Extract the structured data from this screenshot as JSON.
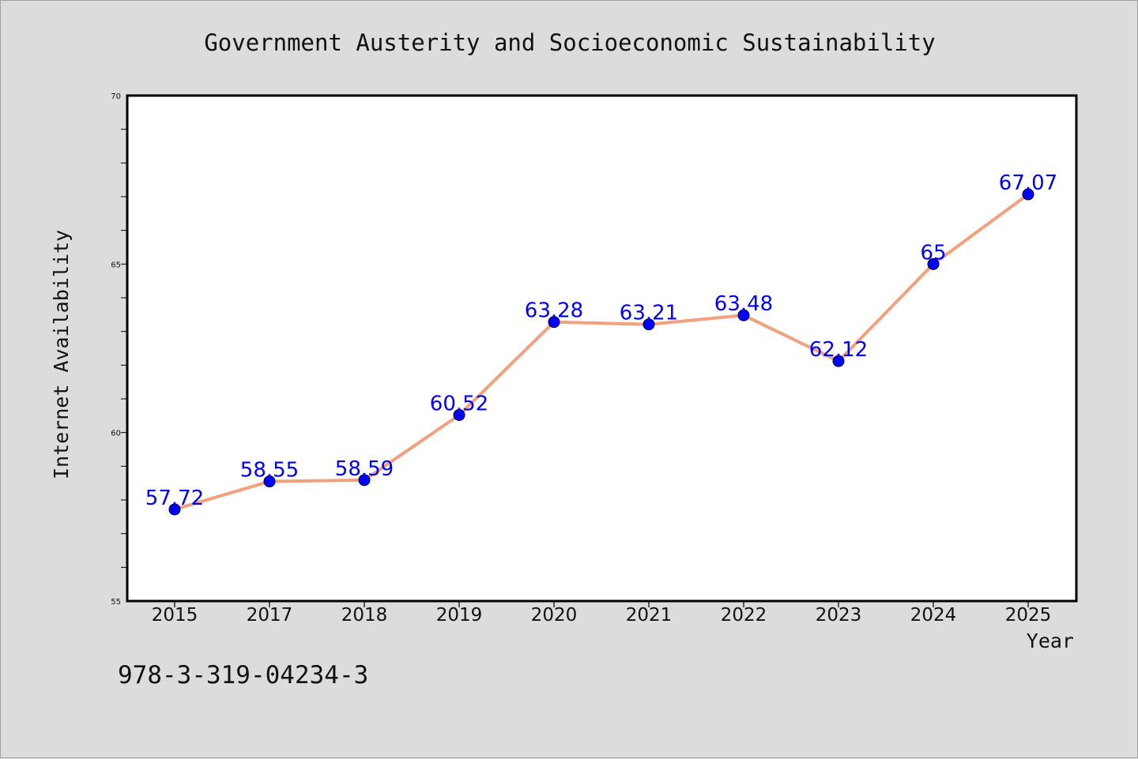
{
  "chart_data": {
    "type": "line",
    "title": "Government Austerity and Socioeconomic Sustainability",
    "xlabel": "Year",
    "ylabel": "Internet Availability",
    "categories": [
      "2015",
      "2017",
      "2018",
      "2019",
      "2020",
      "2021",
      "2022",
      "2023",
      "2024",
      "2025"
    ],
    "series": [
      {
        "values": [
          57.72,
          58.55,
          58.59,
          60.52,
          63.28,
          63.21,
          63.48,
          62.12,
          65,
          67.07
        ],
        "labels": [
          "57.72",
          "58.55",
          "58.59",
          "60.52",
          "63.28",
          "63.21",
          "63.48",
          "62.12",
          "65",
          "67.07"
        ]
      }
    ],
    "ylim": [
      55,
      70
    ],
    "yticks": [
      "55",
      "60",
      "65",
      "70"
    ],
    "grid": false,
    "line_color": "#f4a07c",
    "marker_color": "#0000ff",
    "label_color": "#0000ff",
    "background_color": "#dcdcdc"
  },
  "footer_text": "978-3-319-04234-3"
}
